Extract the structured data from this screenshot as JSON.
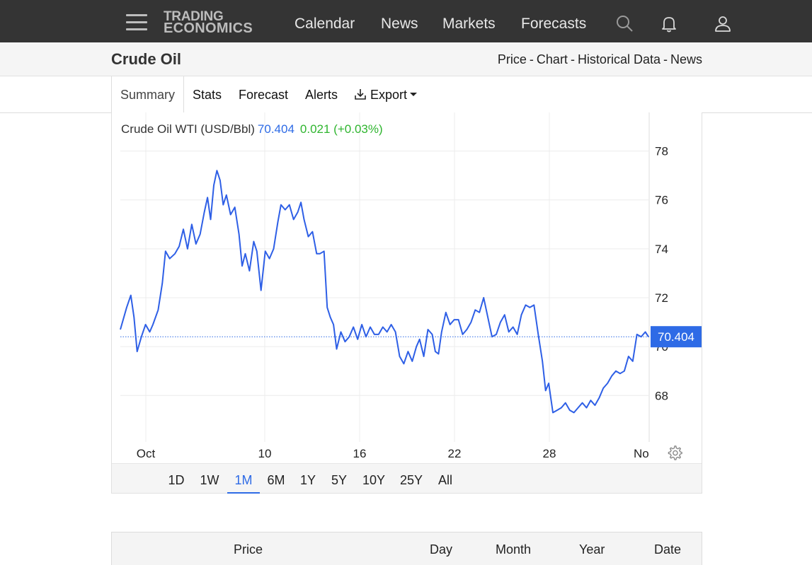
{
  "nav": {
    "logo_line1": "TRADING",
    "logo_line2": "ECONOMICS",
    "links": [
      "Calendar",
      "News",
      "Markets",
      "Forecasts"
    ]
  },
  "titlebar": {
    "title": "Crude Oil",
    "crumbs": [
      "Price",
      "Chart",
      "Historical Data",
      "News"
    ],
    "separator": "-"
  },
  "tabs": {
    "summary": "Summary",
    "stats": "Stats",
    "forecast": "Forecast",
    "alerts": "Alerts",
    "export": "Export"
  },
  "chart_header": {
    "label": "Crude Oil WTI (USD/Bbl)",
    "price": "70.404",
    "change": "0.021 (+0.03%)"
  },
  "chart_data": {
    "type": "line",
    "series": [
      {
        "values": [
          [
            0.0,
            70.7
          ],
          [
            0.6,
            71.6
          ],
          [
            1.0,
            72.1
          ],
          [
            1.3,
            71.2
          ],
          [
            1.6,
            69.8
          ],
          [
            2.0,
            70.4
          ],
          [
            2.4,
            70.9
          ],
          [
            2.8,
            70.6
          ],
          [
            3.1,
            70.9
          ],
          [
            3.6,
            71.5
          ],
          [
            4.0,
            72.6
          ],
          [
            4.3,
            73.9
          ],
          [
            4.7,
            73.6
          ],
          [
            5.2,
            73.8
          ],
          [
            5.6,
            74.1
          ],
          [
            6.0,
            74.8
          ],
          [
            6.4,
            74.0
          ],
          [
            6.8,
            75.0
          ],
          [
            7.2,
            74.2
          ],
          [
            7.6,
            74.6
          ],
          [
            8.0,
            75.5
          ],
          [
            8.3,
            76.1
          ],
          [
            8.6,
            75.2
          ],
          [
            8.9,
            76.6
          ],
          [
            9.2,
            77.2
          ],
          [
            9.5,
            76.8
          ],
          [
            9.8,
            75.8
          ],
          [
            10.1,
            76.2
          ],
          [
            10.5,
            75.4
          ],
          [
            10.9,
            75.7
          ],
          [
            11.3,
            74.6
          ],
          [
            11.6,
            73.3
          ],
          [
            11.9,
            73.8
          ],
          [
            12.3,
            73.1
          ],
          [
            12.7,
            74.3
          ],
          [
            13.0,
            73.9
          ],
          [
            13.4,
            72.3
          ],
          [
            13.8,
            73.9
          ],
          [
            14.2,
            73.6
          ],
          [
            14.6,
            74.0
          ],
          [
            15.0,
            75.1
          ],
          [
            15.3,
            75.8
          ],
          [
            15.7,
            75.6
          ],
          [
            16.1,
            75.8
          ],
          [
            16.5,
            75.2
          ],
          [
            16.9,
            75.5
          ],
          [
            17.2,
            75.9
          ],
          [
            17.5,
            75.2
          ],
          [
            17.9,
            74.5
          ],
          [
            18.3,
            74.7
          ],
          [
            18.7,
            73.8
          ],
          [
            19.0,
            73.8
          ],
          [
            19.4,
            73.9
          ],
          [
            19.7,
            71.6
          ],
          [
            20.0,
            71.2
          ],
          [
            20.3,
            70.9
          ],
          [
            20.6,
            69.9
          ],
          [
            21.0,
            70.6
          ],
          [
            21.4,
            70.2
          ],
          [
            21.8,
            70.4
          ],
          [
            22.2,
            70.8
          ],
          [
            22.6,
            70.3
          ],
          [
            23.0,
            70.9
          ],
          [
            23.4,
            70.4
          ],
          [
            23.8,
            70.8
          ],
          [
            24.2,
            70.5
          ],
          [
            24.6,
            70.5
          ],
          [
            25.0,
            70.8
          ],
          [
            25.4,
            70.6
          ],
          [
            25.8,
            70.9
          ],
          [
            26.2,
            70.6
          ],
          [
            26.6,
            69.6
          ],
          [
            27.0,
            69.3
          ],
          [
            27.4,
            69.8
          ],
          [
            27.8,
            69.4
          ],
          [
            28.2,
            70.0
          ],
          [
            28.5,
            70.3
          ],
          [
            28.9,
            69.6
          ],
          [
            29.3,
            70.7
          ],
          [
            29.7,
            70.5
          ],
          [
            30.0,
            69.8
          ],
          [
            30.3,
            69.7
          ],
          [
            30.6,
            70.6
          ],
          [
            31.0,
            71.4
          ],
          [
            31.4,
            70.9
          ],
          [
            31.8,
            71.1
          ],
          [
            32.2,
            71.1
          ],
          [
            32.6,
            70.5
          ],
          [
            33.0,
            70.7
          ],
          [
            33.4,
            71.0
          ],
          [
            33.8,
            71.5
          ],
          [
            34.2,
            71.4
          ],
          [
            34.6,
            72.0
          ],
          [
            35.0,
            71.2
          ],
          [
            35.4,
            70.4
          ],
          [
            35.8,
            70.5
          ],
          [
            36.2,
            71.0
          ],
          [
            36.6,
            71.3
          ],
          [
            37.0,
            70.6
          ],
          [
            37.4,
            70.8
          ],
          [
            37.8,
            70.5
          ],
          [
            38.2,
            71.3
          ],
          [
            38.6,
            71.7
          ],
          [
            39.0,
            71.6
          ],
          [
            39.4,
            71.7
          ],
          [
            39.8,
            70.5
          ],
          [
            40.2,
            69.4
          ],
          [
            40.5,
            68.2
          ],
          [
            40.8,
            68.5
          ],
          [
            41.2,
            67.3
          ],
          [
            41.6,
            67.4
          ],
          [
            42.0,
            67.5
          ],
          [
            42.4,
            67.7
          ],
          [
            42.8,
            67.4
          ],
          [
            43.2,
            67.3
          ],
          [
            43.6,
            67.5
          ],
          [
            44.0,
            67.7
          ],
          [
            44.4,
            67.5
          ],
          [
            44.8,
            67.8
          ],
          [
            45.2,
            67.6
          ],
          [
            45.6,
            67.9
          ],
          [
            46.0,
            68.3
          ],
          [
            46.4,
            68.5
          ],
          [
            46.8,
            68.8
          ],
          [
            47.2,
            69.0
          ],
          [
            47.6,
            68.9
          ],
          [
            48.0,
            69.0
          ],
          [
            48.4,
            69.6
          ],
          [
            48.8,
            69.4
          ],
          [
            49.2,
            70.5
          ],
          [
            49.6,
            70.4
          ],
          [
            50.0,
            70.6
          ],
          [
            50.3,
            70.4
          ]
        ]
      }
    ],
    "x_ticks": [
      "Oct",
      "10",
      "16",
      "22",
      "28",
      "No"
    ],
    "y_ticks": [
      "68",
      "70",
      "72",
      "74",
      "76",
      "78"
    ],
    "ylim": [
      66,
      78.2
    ],
    "current_value_label": "70.404",
    "grid": true,
    "colors": {
      "line": "#2e5fe6",
      "grid": "#ececec",
      "badge": "#2e6be6"
    }
  },
  "ranges": {
    "items": [
      "1D",
      "1W",
      "1M",
      "6M",
      "1Y",
      "5Y",
      "10Y",
      "25Y",
      "All"
    ],
    "active": "1M"
  },
  "table": {
    "headers": [
      "Price",
      "Day",
      "Month",
      "Year",
      "Date"
    ]
  }
}
